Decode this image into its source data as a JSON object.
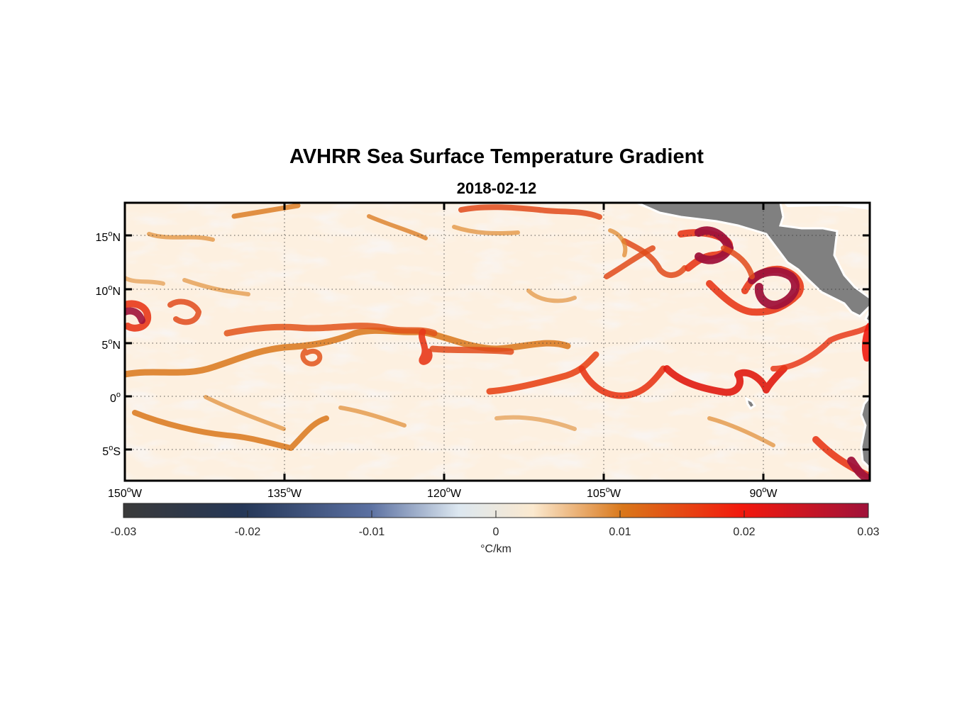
{
  "header": {
    "title": "AVHRR Sea Surface Temperature Gradient",
    "subtitle": "2018-02-12"
  },
  "map": {
    "extent": {
      "lon": [
        -150,
        -80
      ],
      "lat": [
        -8,
        18
      ]
    },
    "lat_ticks": [
      {
        "value": 15,
        "num": "15",
        "hemi": "N"
      },
      {
        "value": 10,
        "num": "10",
        "hemi": "N"
      },
      {
        "value": 5,
        "num": "5",
        "hemi": "N"
      },
      {
        "value": 0,
        "num": "0",
        "hemi": ""
      },
      {
        "value": -5,
        "num": "5",
        "hemi": "S"
      }
    ],
    "lon_ticks": [
      {
        "value": -150,
        "num": "150",
        "hemi": "W"
      },
      {
        "value": -135,
        "num": "135",
        "hemi": "W"
      },
      {
        "value": -120,
        "num": "120",
        "hemi": "W"
      },
      {
        "value": -105,
        "num": "105",
        "hemi": "W"
      },
      {
        "value": -90,
        "num": "90",
        "hemi": "W"
      }
    ],
    "colors": {
      "land": "#808080",
      "background": "#fdf0e0"
    }
  },
  "colorbar": {
    "min": -0.03,
    "max": 0.03,
    "ticks": [
      "-0.03",
      "-0.02",
      "-0.01",
      "0",
      "0.01",
      "0.02",
      "0.03"
    ],
    "tick_values": [
      -0.03,
      -0.02,
      -0.01,
      0,
      0.01,
      0.02,
      0.03
    ],
    "unit": "°C/km",
    "stops": [
      "#3a3a3a",
      "#253757",
      "#5a6fa0",
      "#dce7f0",
      "#fbe9cf",
      "#d9771a",
      "#f2190d",
      "#a0123a"
    ]
  }
}
